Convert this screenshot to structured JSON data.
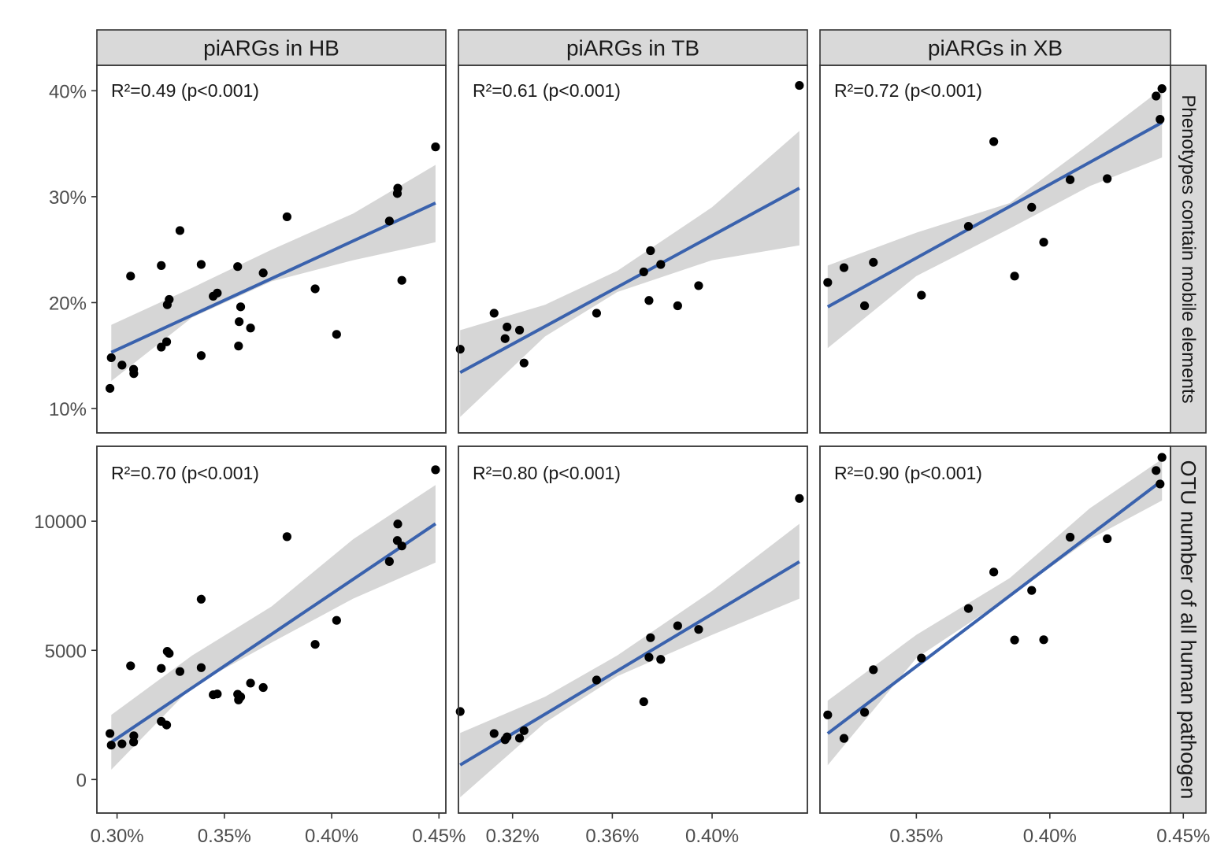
{
  "chart_data": {
    "type": "scatter",
    "layout": "facet-grid 2x3",
    "column_strips": [
      "piARGs in HB",
      "piARGs in TB",
      "piARGs in XB"
    ],
    "row_strips": [
      "Phenotypes contain mobile elements",
      "OTU number of all human pathogen"
    ],
    "x_axes": [
      {
        "ticks": [
          0.3,
          0.35,
          0.4,
          0.45
        ],
        "labels": [
          "0.30%",
          "0.35%",
          "0.40%",
          "0.45%"
        ],
        "xlim": [
          0.2906,
          0.4532
        ]
      },
      {
        "ticks": [
          0.32,
          0.36,
          0.4
        ],
        "labels": [
          "0.32%",
          "0.36%",
          "0.40%"
        ],
        "xlim": [
          0.2983,
          0.4382
        ]
      },
      {
        "ticks": [
          0.35,
          0.4,
          0.45
        ],
        "labels": [
          "0.35%",
          "0.40%",
          "0.45%"
        ],
        "xlim": [
          0.3139,
          0.4452
        ]
      }
    ],
    "y_axes": [
      {
        "ticks": [
          10,
          20,
          30,
          40
        ],
        "labels": [
          "10%",
          "20%",
          "30%",
          "40%"
        ],
        "ylim": [
          7.7,
          42.4
        ]
      },
      {
        "ticks": [
          0,
          5000,
          10000
        ],
        "labels": [
          "0",
          "5000",
          "10000"
        ],
        "ylim": [
          -1300,
          12900
        ]
      }
    ],
    "panels": [
      {
        "col": 0,
        "row": 0,
        "annotation": "R²=0.49 (p<0.001)",
        "points": [
          [
            0.2967,
            11.9
          ],
          [
            0.2973,
            14.8
          ],
          [
            0.3023,
            14.1
          ],
          [
            0.3063,
            22.5
          ],
          [
            0.3077,
            13.7
          ],
          [
            0.3078,
            13.3
          ],
          [
            0.3206,
            15.8
          ],
          [
            0.3206,
            23.5
          ],
          [
            0.3231,
            16.3
          ],
          [
            0.3234,
            19.8
          ],
          [
            0.3243,
            20.3
          ],
          [
            0.3293,
            26.8
          ],
          [
            0.3392,
            23.6
          ],
          [
            0.3392,
            15.0
          ],
          [
            0.3448,
            20.6
          ],
          [
            0.3467,
            20.9
          ],
          [
            0.3562,
            23.4
          ],
          [
            0.3566,
            15.9
          ],
          [
            0.3569,
            18.2
          ],
          [
            0.3576,
            19.6
          ],
          [
            0.3622,
            17.6
          ],
          [
            0.3681,
            22.8
          ],
          [
            0.3792,
            28.1
          ],
          [
            0.3923,
            21.3
          ],
          [
            0.4023,
            17.0
          ],
          [
            0.4269,
            27.7
          ],
          [
            0.4306,
            30.3
          ],
          [
            0.4308,
            30.8
          ],
          [
            0.4327,
            22.1
          ],
          [
            0.4484,
            34.7
          ]
        ],
        "fit": {
          "x": [
            0.2973,
            0.4484
          ],
          "y": [
            15.3,
            29.4
          ]
        },
        "ci_lower": [
          [
            0.2973,
            12.6
          ],
          [
            0.335,
            18.6
          ],
          [
            0.372,
            22.0
          ],
          [
            0.41,
            24.0
          ],
          [
            0.4484,
            25.7
          ]
        ],
        "ci_upper": [
          [
            0.2973,
            17.9
          ],
          [
            0.335,
            21.4
          ],
          [
            0.372,
            25.0
          ],
          [
            0.41,
            28.4
          ],
          [
            0.4484,
            33.0
          ]
        ]
      },
      {
        "col": 1,
        "row": 0,
        "annotation": "R²=0.61 (p<0.001)",
        "points": [
          [
            0.299,
            15.6
          ],
          [
            0.3126,
            19.0
          ],
          [
            0.317,
            16.6
          ],
          [
            0.3178,
            17.7
          ],
          [
            0.3228,
            17.4
          ],
          [
            0.3246,
            14.3
          ],
          [
            0.3537,
            19.0
          ],
          [
            0.3726,
            22.9
          ],
          [
            0.3747,
            20.2
          ],
          [
            0.3753,
            24.9
          ],
          [
            0.3794,
            23.6
          ],
          [
            0.3862,
            19.7
          ],
          [
            0.3946,
            21.6
          ],
          [
            0.435,
            40.5
          ]
        ],
        "fit": {
          "x": [
            0.299,
            0.435
          ],
          "y": [
            13.4,
            30.8
          ]
        },
        "ci_lower": [
          [
            0.299,
            9.2
          ],
          [
            0.333,
            16.8
          ],
          [
            0.362,
            21.0
          ],
          [
            0.4,
            24.0
          ],
          [
            0.435,
            25.4
          ]
        ],
        "ci_upper": [
          [
            0.299,
            17.4
          ],
          [
            0.333,
            19.8
          ],
          [
            0.362,
            23.0
          ],
          [
            0.4,
            29.0
          ],
          [
            0.435,
            36.2
          ]
        ]
      },
      {
        "col": 2,
        "row": 0,
        "annotation": "R²=0.72 (p<0.001)",
        "points": [
          [
            0.3168,
            21.9
          ],
          [
            0.3229,
            23.3
          ],
          [
            0.3306,
            19.7
          ],
          [
            0.3339,
            23.8
          ],
          [
            0.3519,
            20.7
          ],
          [
            0.3695,
            27.2
          ],
          [
            0.379,
            35.2
          ],
          [
            0.3868,
            22.5
          ],
          [
            0.3932,
            29.0
          ],
          [
            0.3977,
            25.7
          ],
          [
            0.4076,
            31.6
          ],
          [
            0.4215,
            31.7
          ],
          [
            0.4398,
            39.5
          ],
          [
            0.4413,
            37.3
          ],
          [
            0.442,
            40.2
          ]
        ],
        "fit": {
          "x": [
            0.3168,
            0.442
          ],
          "y": [
            19.6,
            37.0
          ]
        },
        "ci_lower": [
          [
            0.3168,
            15.7
          ],
          [
            0.35,
            22.5
          ],
          [
            0.385,
            27.0
          ],
          [
            0.415,
            31.0
          ],
          [
            0.442,
            33.7
          ]
        ],
        "ci_upper": [
          [
            0.3168,
            23.5
          ],
          [
            0.35,
            26.6
          ],
          [
            0.385,
            29.4
          ],
          [
            0.415,
            35.0
          ],
          [
            0.442,
            40.2
          ]
        ]
      },
      {
        "col": 0,
        "row": 1,
        "annotation": "R²=0.70 (p<0.001)",
        "points": [
          [
            0.2967,
            1780
          ],
          [
            0.2973,
            1330
          ],
          [
            0.3023,
            1380
          ],
          [
            0.3063,
            4400
          ],
          [
            0.3077,
            1450
          ],
          [
            0.3078,
            1690
          ],
          [
            0.3206,
            4300
          ],
          [
            0.3206,
            2250
          ],
          [
            0.3231,
            2110
          ],
          [
            0.3234,
            4960
          ],
          [
            0.3243,
            4880
          ],
          [
            0.3293,
            4180
          ],
          [
            0.3392,
            6980
          ],
          [
            0.3392,
            4330
          ],
          [
            0.3448,
            3280
          ],
          [
            0.3467,
            3310
          ],
          [
            0.3562,
            3300
          ],
          [
            0.3566,
            3080
          ],
          [
            0.3569,
            3130
          ],
          [
            0.3576,
            3200
          ],
          [
            0.3622,
            3730
          ],
          [
            0.3681,
            3560
          ],
          [
            0.3792,
            9400
          ],
          [
            0.3923,
            5230
          ],
          [
            0.4023,
            6160
          ],
          [
            0.4269,
            8440
          ],
          [
            0.4306,
            9250
          ],
          [
            0.4308,
            9890
          ],
          [
            0.4327,
            9040
          ],
          [
            0.4484,
            11990
          ]
        ],
        "fit": {
          "x": [
            0.2973,
            0.4484
          ],
          "y": [
            1440,
            9900
          ]
        },
        "ci_lower": [
          [
            0.2973,
            380
          ],
          [
            0.335,
            3600
          ],
          [
            0.372,
            5300
          ],
          [
            0.41,
            7000
          ],
          [
            0.4484,
            8400
          ]
        ],
        "ci_upper": [
          [
            0.2973,
            2500
          ],
          [
            0.335,
            4800
          ],
          [
            0.372,
            6700
          ],
          [
            0.41,
            9300
          ],
          [
            0.4484,
            11400
          ]
        ]
      },
      {
        "col": 1,
        "row": 1,
        "annotation": "R²=0.80 (p<0.001)",
        "points": [
          [
            0.299,
            2630
          ],
          [
            0.3126,
            1780
          ],
          [
            0.317,
            1540
          ],
          [
            0.3178,
            1650
          ],
          [
            0.3228,
            1600
          ],
          [
            0.3246,
            1890
          ],
          [
            0.3537,
            3850
          ],
          [
            0.3726,
            3010
          ],
          [
            0.3747,
            4730
          ],
          [
            0.3753,
            5490
          ],
          [
            0.3794,
            4650
          ],
          [
            0.3862,
            5950
          ],
          [
            0.3946,
            5810
          ],
          [
            0.435,
            10880
          ]
        ],
        "fit": {
          "x": [
            0.299,
            0.435
          ],
          "y": [
            560,
            8430
          ]
        },
        "ci_lower": [
          [
            0.299,
            -690
          ],
          [
            0.333,
            2200
          ],
          [
            0.362,
            4000
          ],
          [
            0.4,
            5600
          ],
          [
            0.435,
            7000
          ]
        ],
        "ci_upper": [
          [
            0.299,
            1800
          ],
          [
            0.333,
            3200
          ],
          [
            0.362,
            4800
          ],
          [
            0.4,
            7300
          ],
          [
            0.435,
            9900
          ]
        ]
      },
      {
        "col": 2,
        "row": 1,
        "annotation": "R²=0.90 (p<0.001)",
        "points": [
          [
            0.3168,
            2500
          ],
          [
            0.3229,
            1590
          ],
          [
            0.3306,
            2600
          ],
          [
            0.3339,
            4250
          ],
          [
            0.3519,
            4700
          ],
          [
            0.3695,
            6620
          ],
          [
            0.379,
            8030
          ],
          [
            0.3868,
            5400
          ],
          [
            0.3932,
            7320
          ],
          [
            0.3977,
            5410
          ],
          [
            0.4076,
            9380
          ],
          [
            0.4215,
            9320
          ],
          [
            0.4398,
            11960
          ],
          [
            0.4413,
            11440
          ],
          [
            0.442,
            12470
          ]
        ],
        "fit": {
          "x": [
            0.3168,
            0.442
          ],
          "y": [
            1780,
            11570
          ]
        },
        "ci_lower": [
          [
            0.3168,
            550
          ],
          [
            0.35,
            4700
          ],
          [
            0.385,
            7100
          ],
          [
            0.415,
            9300
          ],
          [
            0.442,
            10800
          ]
        ],
        "ci_upper": [
          [
            0.3168,
            3050
          ],
          [
            0.35,
            5600
          ],
          [
            0.385,
            7800
          ],
          [
            0.415,
            10500
          ],
          [
            0.442,
            12400
          ]
        ]
      }
    ]
  }
}
